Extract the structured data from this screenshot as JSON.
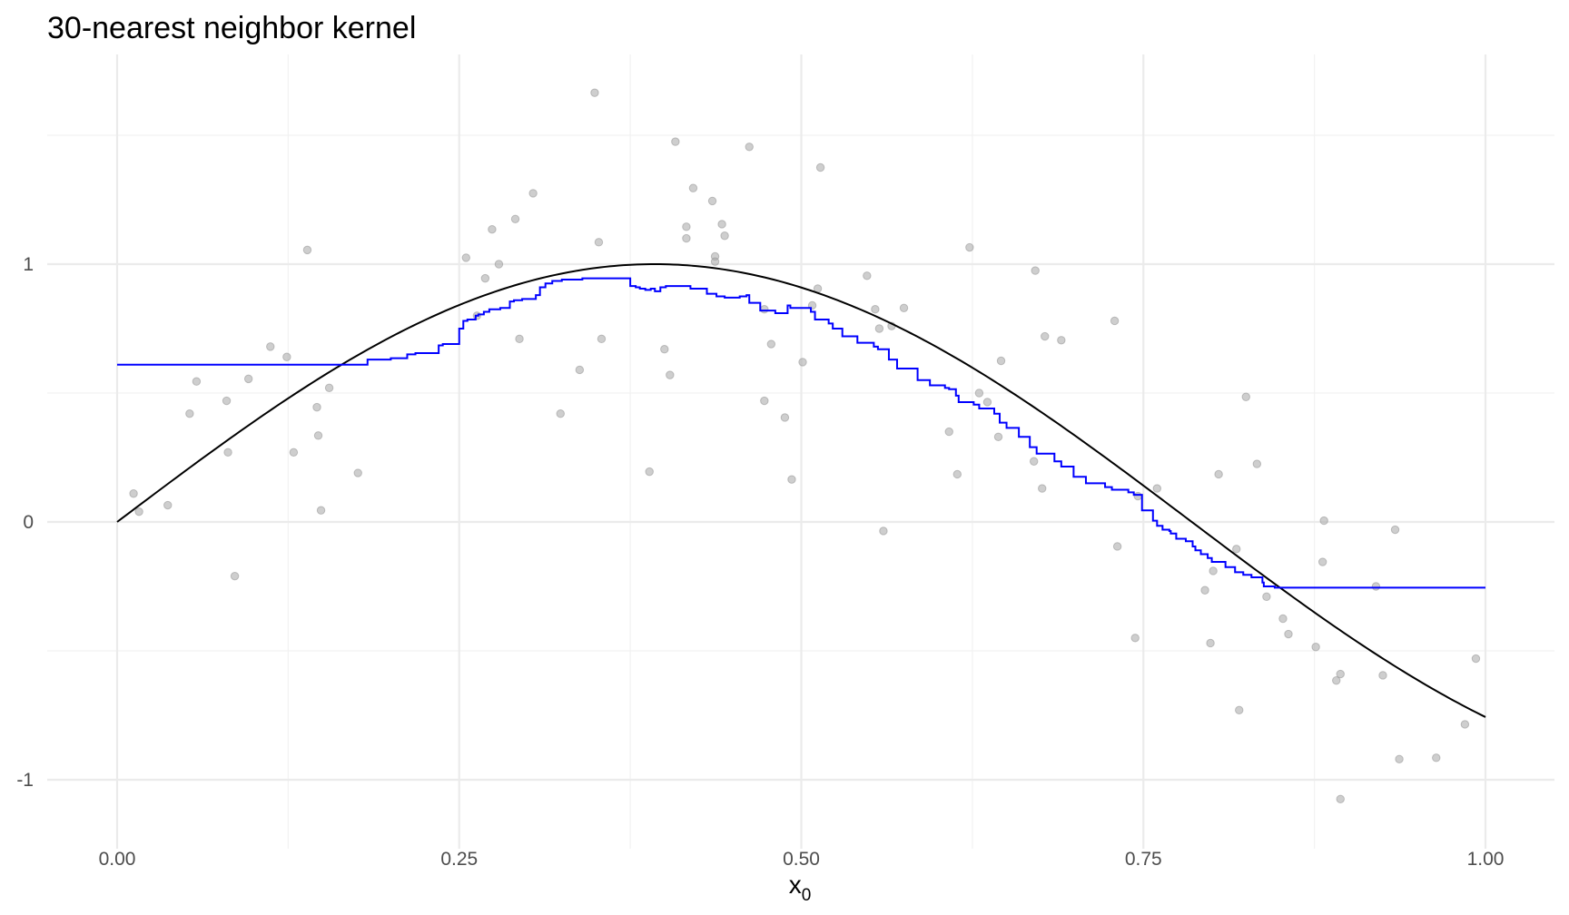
{
  "chart_data": {
    "type": "line",
    "title": "30-nearest neighbor kernel",
    "xlabel": "x",
    "xlabel_subscript": "0",
    "ylabel": "",
    "xlim": [
      0,
      1
    ],
    "ylim": [
      -1.15,
      1.65
    ],
    "x_ticks": [
      0,
      0.25,
      0.5,
      0.75,
      1
    ],
    "x_tick_labels": [
      "0.00",
      "0.25",
      "0.50",
      "0.75",
      "1.00"
    ],
    "y_ticks": [
      -1,
      0,
      1
    ],
    "y_tick_labels": [
      "-1",
      "0",
      "1"
    ],
    "grid": true,
    "legend": "none",
    "colors": {
      "points": "#a6a6a6",
      "true_curve": "#000000",
      "knn_fit": "#0000ff",
      "grid": "#ebebeb"
    },
    "true_function": "sin(4x)",
    "points": [
      [
        0.012,
        0.11
      ],
      [
        0.016,
        0.04
      ],
      [
        0.037,
        0.065
      ],
      [
        0.053,
        0.42
      ],
      [
        0.058,
        0.545
      ],
      [
        0.08,
        0.47
      ],
      [
        0.081,
        0.27
      ],
      [
        0.086,
        -0.21
      ],
      [
        0.096,
        0.555
      ],
      [
        0.112,
        0.68
      ],
      [
        0.124,
        0.64
      ],
      [
        0.129,
        0.27
      ],
      [
        0.139,
        1.055
      ],
      [
        0.146,
        0.445
      ],
      [
        0.147,
        0.335
      ],
      [
        0.149,
        0.045
      ],
      [
        0.155,
        0.52
      ],
      [
        0.176,
        0.19
      ],
      [
        0.255,
        1.025
      ],
      [
        0.263,
        0.8
      ],
      [
        0.269,
        0.945
      ],
      [
        0.274,
        1.135
      ],
      [
        0.279,
        1.0
      ],
      [
        0.291,
        1.175
      ],
      [
        0.294,
        0.71
      ],
      [
        0.304,
        1.275
      ],
      [
        0.324,
        0.42
      ],
      [
        0.338,
        0.59
      ],
      [
        0.349,
        1.665
      ],
      [
        0.352,
        1.085
      ],
      [
        0.354,
        0.71
      ],
      [
        0.389,
        0.195
      ],
      [
        0.4,
        0.67
      ],
      [
        0.404,
        0.57
      ],
      [
        0.408,
        1.475
      ],
      [
        0.416,
        1.1
      ],
      [
        0.416,
        1.145
      ],
      [
        0.421,
        1.295
      ],
      [
        0.435,
        1.245
      ],
      [
        0.437,
        1.03
      ],
      [
        0.437,
        1.01
      ],
      [
        0.442,
        1.155
      ],
      [
        0.444,
        1.11
      ],
      [
        0.462,
        1.455
      ],
      [
        0.473,
        0.47
      ],
      [
        0.473,
        0.825
      ],
      [
        0.478,
        0.69
      ],
      [
        0.488,
        0.405
      ],
      [
        0.493,
        0.165
      ],
      [
        0.501,
        0.62
      ],
      [
        0.508,
        0.84
      ],
      [
        0.512,
        0.905
      ],
      [
        0.514,
        1.375
      ],
      [
        0.548,
        0.955
      ],
      [
        0.554,
        0.825
      ],
      [
        0.557,
        0.75
      ],
      [
        0.56,
        -0.035
      ],
      [
        0.566,
        0.76
      ],
      [
        0.575,
        0.83
      ],
      [
        0.608,
        0.35
      ],
      [
        0.614,
        0.185
      ],
      [
        0.623,
        1.065
      ],
      [
        0.63,
        0.5
      ],
      [
        0.636,
        0.465
      ],
      [
        0.644,
        0.33
      ],
      [
        0.646,
        0.625
      ],
      [
        0.67,
        0.235
      ],
      [
        0.671,
        0.975
      ],
      [
        0.676,
        0.13
      ],
      [
        0.678,
        0.72
      ],
      [
        0.69,
        0.705
      ],
      [
        0.729,
        0.78
      ],
      [
        0.731,
        -0.095
      ],
      [
        0.744,
        -0.45
      ],
      [
        0.746,
        0.1
      ],
      [
        0.76,
        0.13
      ],
      [
        0.795,
        -0.265
      ],
      [
        0.799,
        -0.47
      ],
      [
        0.801,
        -0.19
      ],
      [
        0.805,
        0.185
      ],
      [
        0.818,
        -0.105
      ],
      [
        0.82,
        -0.73
      ],
      [
        0.825,
        0.485
      ],
      [
        0.833,
        0.225
      ],
      [
        0.84,
        -0.29
      ],
      [
        0.852,
        -0.375
      ],
      [
        0.856,
        -0.435
      ],
      [
        0.876,
        -0.485
      ],
      [
        0.881,
        -0.155
      ],
      [
        0.882,
        0.005
      ],
      [
        0.891,
        -0.615
      ],
      [
        0.894,
        -0.59
      ],
      [
        0.92,
        -0.25
      ],
      [
        0.925,
        -0.595
      ],
      [
        0.934,
        -0.03
      ],
      [
        0.937,
        -0.92
      ],
      [
        0.964,
        -0.915
      ],
      [
        0.985,
        -0.785
      ],
      [
        0.993,
        -0.53
      ],
      [
        0.894,
        -1.075
      ]
    ],
    "knn_fit": {
      "x": [
        0,
        0.183,
        0.2,
        0.212,
        0.218,
        0.235,
        0.238,
        0.25,
        0.253,
        0.256,
        0.262,
        0.264,
        0.268,
        0.272,
        0.28,
        0.287,
        0.29,
        0.296,
        0.306,
        0.309,
        0.313,
        0.318,
        0.325,
        0.34,
        0.375,
        0.379,
        0.382,
        0.386,
        0.39,
        0.393,
        0.397,
        0.401,
        0.419,
        0.431,
        0.438,
        0.444,
        0.455,
        0.46,
        0.462,
        0.47,
        0.481,
        0.49,
        0.492,
        0.507,
        0.51,
        0.52,
        0.523,
        0.53,
        0.541,
        0.553,
        0.556,
        0.564,
        0.57,
        0.585,
        0.594,
        0.605,
        0.608,
        0.613,
        0.615,
        0.626,
        0.63,
        0.641,
        0.645,
        0.65,
        0.659,
        0.667,
        0.672,
        0.685,
        0.69,
        0.699,
        0.708,
        0.722,
        0.727,
        0.739,
        0.743,
        0.749,
        0.757,
        0.76,
        0.764,
        0.769,
        0.77,
        0.774,
        0.781,
        0.786,
        0.788,
        0.792,
        0.797,
        0.8,
        0.81,
        0.817,
        0.823,
        0.829,
        0.837,
        0.838,
        0.846,
        1.0
      ],
      "y": [
        0.61,
        0.63,
        0.635,
        0.65,
        0.655,
        0.685,
        0.69,
        0.75,
        0.78,
        0.785,
        0.8,
        0.805,
        0.815,
        0.825,
        0.83,
        0.855,
        0.86,
        0.865,
        0.88,
        0.91,
        0.925,
        0.935,
        0.94,
        0.945,
        0.915,
        0.91,
        0.905,
        0.9,
        0.905,
        0.895,
        0.91,
        0.915,
        0.905,
        0.885,
        0.875,
        0.87,
        0.875,
        0.88,
        0.85,
        0.82,
        0.81,
        0.84,
        0.83,
        0.815,
        0.785,
        0.77,
        0.75,
        0.72,
        0.695,
        0.68,
        0.67,
        0.63,
        0.595,
        0.55,
        0.53,
        0.52,
        0.515,
        0.49,
        0.465,
        0.455,
        0.44,
        0.42,
        0.385,
        0.365,
        0.33,
        0.29,
        0.265,
        0.235,
        0.215,
        0.175,
        0.15,
        0.135,
        0.125,
        0.115,
        0.105,
        0.045,
        0.005,
        -0.015,
        -0.03,
        -0.035,
        -0.045,
        -0.065,
        -0.075,
        -0.095,
        -0.11,
        -0.125,
        -0.14,
        -0.155,
        -0.175,
        -0.195,
        -0.205,
        -0.215,
        -0.235,
        -0.25,
        -0.255,
        -0.255
      ]
    }
  }
}
